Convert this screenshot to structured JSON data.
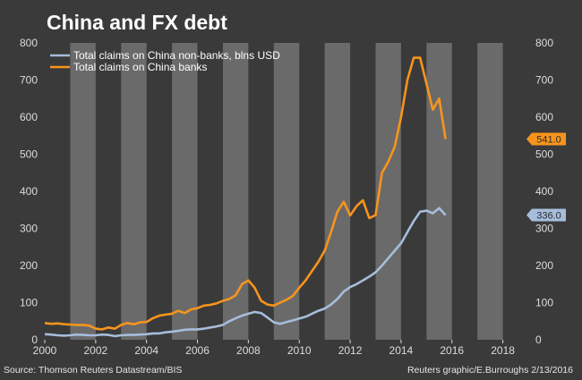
{
  "chart_data": {
    "type": "line",
    "title": "China and FX debt",
    "xlim": [
      2000,
      2019
    ],
    "ylim": [
      0,
      800
    ],
    "x_ticks": [
      "2000",
      "2002",
      "2004",
      "2006",
      "2008",
      "2010",
      "2012",
      "2014",
      "2016",
      "2018"
    ],
    "y_ticks": [
      "0",
      "100",
      "200",
      "300",
      "400",
      "500",
      "600",
      "700",
      "800"
    ],
    "y_axis": "left and right",
    "background_shading": "alternating gray bands, one per year",
    "legend_position": "top-left",
    "series": [
      {
        "name": "Total claims on China non-banks, blns USD",
        "color": "#a6bddb",
        "end_label": "336.0",
        "x": [
          2000.0,
          2000.25,
          2000.5,
          2000.75,
          2001.0,
          2001.25,
          2001.5,
          2001.75,
          2002.0,
          2002.25,
          2002.5,
          2002.75,
          2003.0,
          2003.25,
          2003.5,
          2003.75,
          2004.0,
          2004.25,
          2004.5,
          2004.75,
          2005.0,
          2005.25,
          2005.5,
          2005.75,
          2006.0,
          2006.25,
          2006.5,
          2006.75,
          2007.0,
          2007.25,
          2007.5,
          2007.75,
          2008.0,
          2008.25,
          2008.5,
          2008.75,
          2009.0,
          2009.25,
          2009.5,
          2009.75,
          2010.0,
          2010.25,
          2010.5,
          2010.75,
          2011.0,
          2011.25,
          2011.5,
          2011.75,
          2012.0,
          2012.25,
          2012.5,
          2012.75,
          2013.0,
          2013.25,
          2013.5,
          2013.75,
          2014.0,
          2014.25,
          2014.5,
          2014.75,
          2015.0,
          2015.25,
          2015.5,
          2015.75
        ],
        "values": [
          15,
          14,
          12,
          11,
          12,
          14,
          13,
          12,
          12,
          14,
          13,
          10,
          12,
          13,
          13,
          14,
          15,
          17,
          17,
          20,
          22,
          24,
          27,
          28,
          28,
          30,
          33,
          36,
          40,
          50,
          58,
          65,
          70,
          75,
          72,
          60,
          47,
          43,
          48,
          52,
          57,
          62,
          70,
          78,
          84,
          95,
          110,
          130,
          142,
          150,
          160,
          170,
          182,
          200,
          220,
          240,
          260,
          290,
          320,
          345,
          348,
          341,
          355,
          336
        ]
      },
      {
        "name": "Total claims on China banks",
        "color": "#f7941d",
        "end_label": "541.0",
        "x": [
          2000.0,
          2000.25,
          2000.5,
          2000.75,
          2001.0,
          2001.25,
          2001.5,
          2001.75,
          2002.0,
          2002.25,
          2002.5,
          2002.75,
          2003.0,
          2003.25,
          2003.5,
          2003.75,
          2004.0,
          2004.25,
          2004.5,
          2004.75,
          2005.0,
          2005.25,
          2005.5,
          2005.75,
          2006.0,
          2006.25,
          2006.5,
          2006.75,
          2007.0,
          2007.25,
          2007.5,
          2007.75,
          2008.0,
          2008.25,
          2008.5,
          2008.75,
          2009.0,
          2009.25,
          2009.5,
          2009.75,
          2010.0,
          2010.25,
          2010.5,
          2010.75,
          2011.0,
          2011.25,
          2011.5,
          2011.75,
          2012.0,
          2012.25,
          2012.5,
          2012.75,
          2013.0,
          2013.25,
          2013.5,
          2013.75,
          2014.0,
          2014.25,
          2014.5,
          2014.75,
          2015.0,
          2015.25,
          2015.5,
          2015.75
        ],
        "values": [
          45,
          43,
          44,
          42,
          41,
          40,
          40,
          38,
          30,
          28,
          33,
          30,
          40,
          45,
          42,
          47,
          48,
          58,
          65,
          68,
          70,
          78,
          72,
          82,
          85,
          92,
          94,
          98,
          105,
          110,
          120,
          150,
          160,
          140,
          105,
          95,
          92,
          100,
          108,
          118,
          140,
          160,
          185,
          210,
          240,
          290,
          345,
          372,
          335,
          360,
          376,
          328,
          336,
          450,
          480,
          520,
          600,
          700,
          760,
          760,
          690,
          620,
          650,
          541
        ]
      }
    ]
  },
  "footer": {
    "source": "Source: Thomson Reuters Datastream/BIS",
    "credit": "Reuters graphic/E.Burroughs 2/13/2016"
  },
  "colors": {
    "background": "#3a3a3a",
    "band": "#6a6a6a",
    "text": "#ffffff"
  }
}
